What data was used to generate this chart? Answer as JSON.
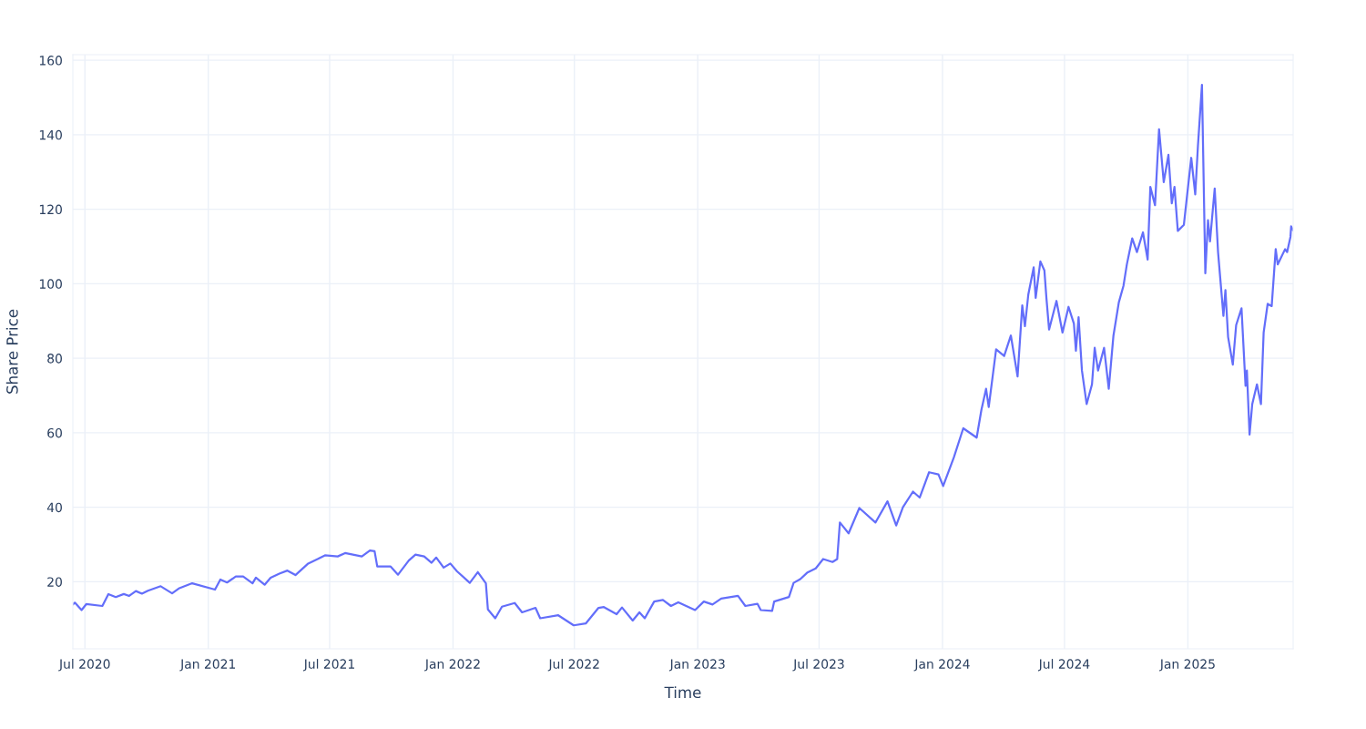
{
  "chart_data": {
    "type": "line",
    "xlabel": "Time",
    "ylabel": "Share Price",
    "x": [
      "2020-06-13",
      "2020-06-16",
      "2020-06-26",
      "2020-07-03",
      "2020-07-27",
      "2020-08-05",
      "2020-08-16",
      "2020-08-28",
      "2020-09-05",
      "2020-09-15",
      "2020-09-24",
      "2020-10-03",
      "2020-10-22",
      "2020-11-08",
      "2020-11-18",
      "2020-12-08",
      "2021-01-11",
      "2021-01-19",
      "2021-01-29",
      "2021-02-11",
      "2021-02-22",
      "2021-03-08",
      "2021-03-13",
      "2021-03-26",
      "2021-04-04",
      "2021-04-17",
      "2021-04-29",
      "2021-05-11",
      "2021-05-30",
      "2021-06-13",
      "2021-06-24",
      "2021-07-13",
      "2021-07-24",
      "2021-08-18",
      "2021-08-30",
      "2021-09-06",
      "2021-09-10",
      "2021-09-30",
      "2021-10-11",
      "2021-10-27",
      "2021-11-06",
      "2021-11-19",
      "2021-11-30",
      "2021-12-07",
      "2021-12-18",
      "2021-12-28",
      "2022-01-07",
      "2022-01-26",
      "2022-02-07",
      "2022-02-19",
      "2022-02-22",
      "2022-03-05",
      "2022-03-15",
      "2022-04-03",
      "2022-04-14",
      "2022-05-04",
      "2022-05-11",
      "2022-06-07",
      "2022-06-30",
      "2022-07-18",
      "2022-08-06",
      "2022-08-14",
      "2022-09-02",
      "2022-09-10",
      "2022-09-26",
      "2022-10-06",
      "2022-10-14",
      "2022-10-28",
      "2022-11-10",
      "2022-11-22",
      "2022-12-03",
      "2022-12-28",
      "2023-01-10",
      "2023-01-23",
      "2023-02-05",
      "2023-03-02",
      "2023-03-13",
      "2023-03-31",
      "2023-04-05",
      "2023-04-22",
      "2023-04-25",
      "2023-05-17",
      "2023-05-24",
      "2023-06-03",
      "2023-06-13",
      "2023-06-26",
      "2023-07-07",
      "2023-07-21",
      "2023-07-28",
      "2023-08-01",
      "2023-08-14",
      "2023-08-30",
      "2023-09-23",
      "2023-10-11",
      "2023-10-24",
      "2023-11-03",
      "2023-11-18",
      "2023-11-28",
      "2023-12-12",
      "2023-12-26",
      "2024-01-02",
      "2024-01-18",
      "2024-02-01",
      "2024-02-21",
      "2024-02-28",
      "2024-03-06",
      "2024-03-10",
      "2024-03-21",
      "2024-04-02",
      "2024-04-12",
      "2024-04-22",
      "2024-04-29",
      "2024-05-03",
      "2024-05-08",
      "2024-05-16",
      "2024-05-19",
      "2024-05-26",
      "2024-06-01",
      "2024-06-04",
      "2024-06-08",
      "2024-06-19",
      "2024-06-28",
      "2024-07-07",
      "2024-07-15",
      "2024-07-18",
      "2024-07-22",
      "2024-07-27",
      "2024-08-03",
      "2024-08-11",
      "2024-08-15",
      "2024-08-20",
      "2024-08-29",
      "2024-09-05",
      "2024-09-12",
      "2024-09-20",
      "2024-09-27",
      "2024-10-02",
      "2024-10-10",
      "2024-10-17",
      "2024-10-26",
      "2024-11-02",
      "2024-11-06",
      "2024-11-13",
      "2024-11-19",
      "2024-11-26",
      "2024-12-03",
      "2024-12-08",
      "2024-12-12",
      "2024-12-17",
      "2024-12-26",
      "2025-01-06",
      "2025-01-12",
      "2025-01-16",
      "2025-01-22",
      "2025-01-27",
      "2025-01-31",
      "2025-02-03",
      "2025-02-10",
      "2025-02-15",
      "2025-02-23",
      "2025-02-26",
      "2025-03-02",
      "2025-03-09",
      "2025-03-14",
      "2025-03-22",
      "2025-03-28",
      "2025-03-30",
      "2025-04-03",
      "2025-04-07",
      "2025-04-14",
      "2025-04-20",
      "2025-04-24",
      "2025-04-30",
      "2025-05-06",
      "2025-05-12",
      "2025-05-15",
      "2025-05-26",
      "2025-05-29",
      "2025-06-03",
      "2025-06-04",
      "2025-06-07"
    ],
    "series": [
      {
        "color": "#636efa",
        "values": [
          13.9,
          14.4,
          12.4,
          14.0,
          13.5,
          16.7,
          15.9,
          16.7,
          16.2,
          17.5,
          16.8,
          17.6,
          18.8,
          16.9,
          18.2,
          19.6,
          17.9,
          20.6,
          19.8,
          21.4,
          21.4,
          19.6,
          21.1,
          19.2,
          21.1,
          22.2,
          23.0,
          21.8,
          24.9,
          26.1,
          27.1,
          26.8,
          27.7,
          26.8,
          28.4,
          28.2,
          24.1,
          24.1,
          21.9,
          25.7,
          27.3,
          26.8,
          25.1,
          26.5,
          23.8,
          24.9,
          22.8,
          19.7,
          22.6,
          19.6,
          12.6,
          10.2,
          13.3,
          14.3,
          11.8,
          13.0,
          10.2,
          11.0,
          8.3,
          8.8,
          13.0,
          13.2,
          11.3,
          13.1,
          9.6,
          11.8,
          10.2,
          14.7,
          15.1,
          13.5,
          14.5,
          12.4,
          14.7,
          13.9,
          15.5,
          16.2,
          13.5,
          14.1,
          12.4,
          12.2,
          14.7,
          15.9,
          19.7,
          20.7,
          22.4,
          23.6,
          26.1,
          25.3,
          26.1,
          35.9,
          33.0,
          39.8,
          35.9,
          41.6,
          35.1,
          40.0,
          44.2,
          42.6,
          49.4,
          48.8,
          45.7,
          53.4,
          61.2,
          58.7,
          66.1,
          71.8,
          66.9,
          82.4,
          80.6,
          86.1,
          75.1,
          94.2,
          88.6,
          97.1,
          104.4,
          96.2,
          106.0,
          103.6,
          96.2,
          87.7,
          95.4,
          86.9,
          93.8,
          89.3,
          82.0,
          91.0,
          76.7,
          67.7,
          73.0,
          82.8,
          76.7,
          82.8,
          71.8,
          86.1,
          95.0,
          99.5,
          105.2,
          112.2,
          108.5,
          113.8,
          106.5,
          126.0,
          121.1,
          141.5,
          127.3,
          134.6,
          121.6,
          126.0,
          114.2,
          115.8,
          133.8,
          124.0,
          137.0,
          153.4,
          102.8,
          117.1,
          111.4,
          125.6,
          108.5,
          91.4,
          98.3,
          85.7,
          78.3,
          88.9,
          93.4,
          72.6,
          76.7,
          59.5,
          67.7,
          73.0,
          67.7,
          86.9,
          94.6,
          94.0,
          109.3,
          105.2,
          109.3,
          108.5,
          112.6,
          115.4,
          114.4
        ]
      }
    ],
    "xlim": [
      "2020-06-13",
      "2025-06-07"
    ],
    "xticks": [
      {
        "value": "2020-07-01",
        "label": "Jul 2020"
      },
      {
        "value": "2021-01-01",
        "label": "Jan 2021"
      },
      {
        "value": "2021-07-01",
        "label": "Jul 2021"
      },
      {
        "value": "2022-01-01",
        "label": "Jan 2022"
      },
      {
        "value": "2022-07-01",
        "label": "Jul 2022"
      },
      {
        "value": "2023-01-01",
        "label": "Jan 2023"
      },
      {
        "value": "2023-07-01",
        "label": "Jul 2023"
      },
      {
        "value": "2024-01-01",
        "label": "Jan 2024"
      },
      {
        "value": "2024-07-01",
        "label": "Jul 2024"
      },
      {
        "value": "2025-01-01",
        "label": "Jan 2025"
      }
    ],
    "ylim": [
      2,
      161.5
    ],
    "yticks": [
      20,
      40,
      60,
      80,
      100,
      120,
      140,
      160
    ],
    "grid": true,
    "marker": "none",
    "line_style": "solid"
  }
}
